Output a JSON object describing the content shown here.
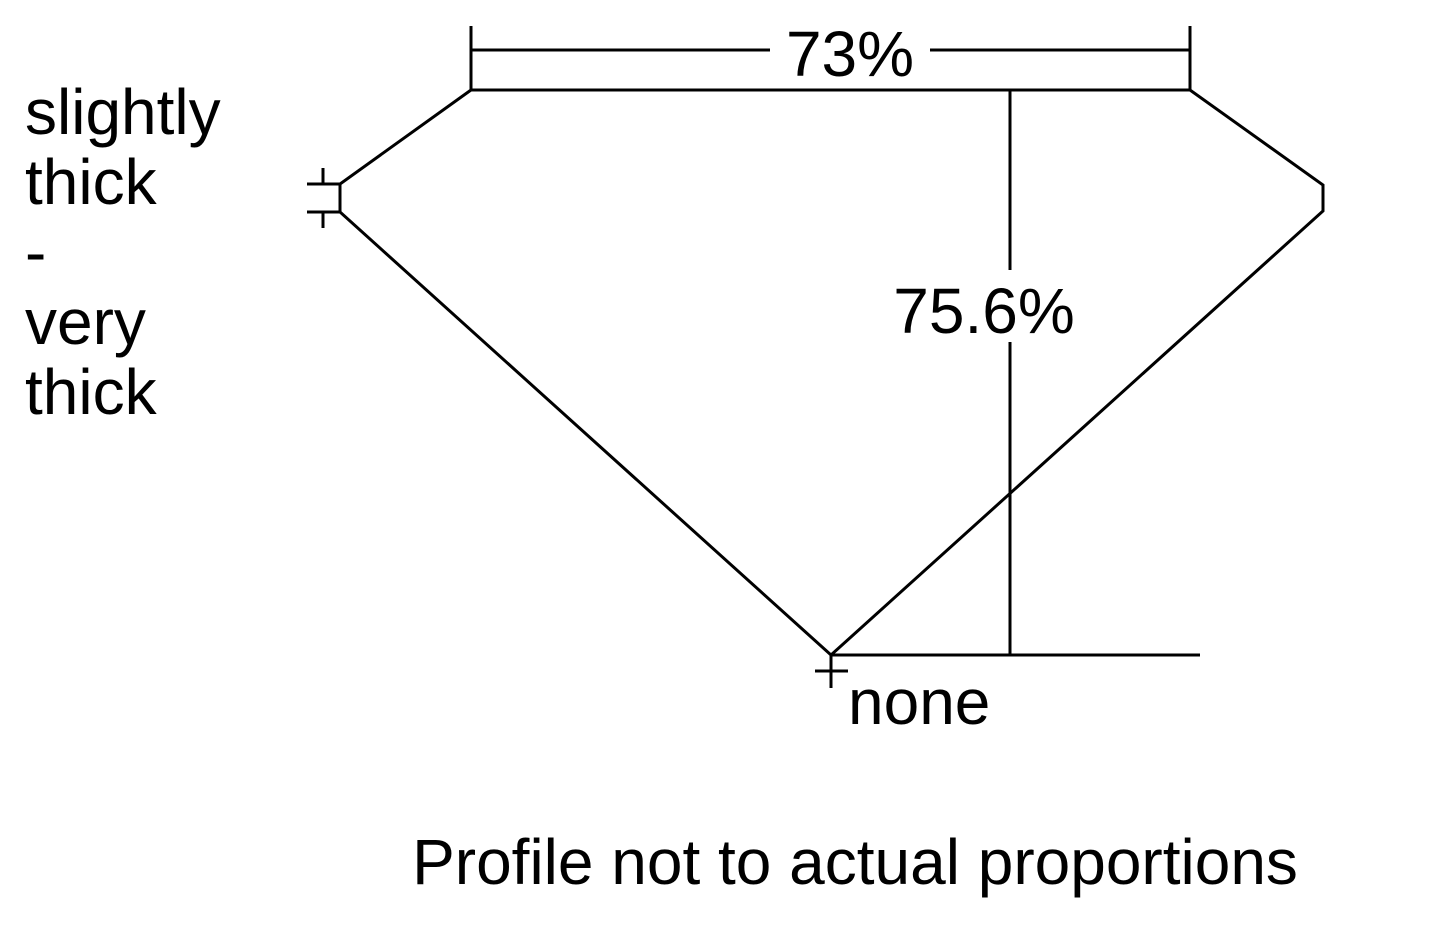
{
  "diagram": {
    "table_percent": "73%",
    "depth_percent": "75.6%",
    "girdle_label_lines": [
      "slightly",
      "thick",
      "-",
      "very",
      "thick"
    ],
    "culet_label": "none",
    "footnote": "Profile not to actual proportions",
    "stroke_color": "#000000",
    "background_color": "#ffffff"
  }
}
